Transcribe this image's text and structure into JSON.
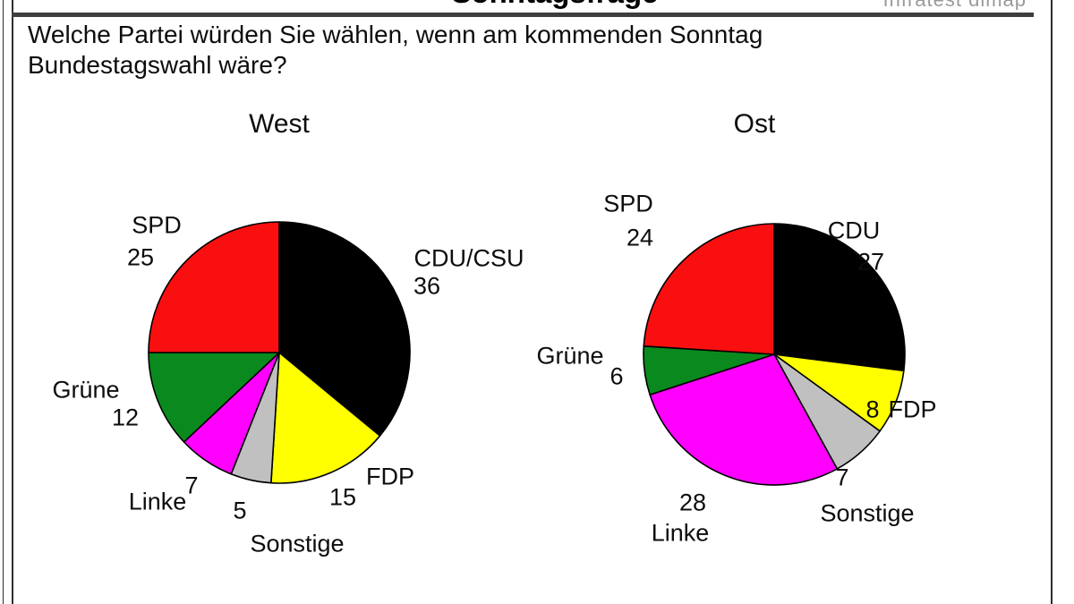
{
  "page": {
    "clipped_header_title": "Sonntagsfrage",
    "source_logo": "Infratest dimap",
    "question": {
      "line1": "Welche Partei würden Sie wählen, wenn am kommenden Sonntag",
      "line2": "Bundestagswahl wäre?"
    }
  },
  "chart_data": [
    {
      "type": "pie",
      "title": "West",
      "unit": "percent",
      "start_angle": "12-oclock",
      "direction": "clockwise",
      "categories": [
        "CDU/CSU",
        "FDP",
        "Sonstige",
        "Linke",
        "Grüne",
        "SPD"
      ],
      "values": [
        36,
        15,
        5,
        7,
        12,
        25
      ],
      "colors": [
        "#000000",
        "#ffff00",
        "#c0c0c0",
        "#ff00ff",
        "#0a8a1e",
        "#f90f0f"
      ]
    },
    {
      "type": "pie",
      "title": "Ost",
      "unit": "percent",
      "start_angle": "12-oclock",
      "direction": "clockwise",
      "categories": [
        "CDU",
        "FDP",
        "Sonstige",
        "Linke",
        "Grüne",
        "SPD"
      ],
      "values": [
        27,
        8,
        7,
        28,
        6,
        24
      ],
      "colors": [
        "#000000",
        "#ffff00",
        "#c0c0c0",
        "#ff00ff",
        "#0a8a1e",
        "#f90f0f"
      ]
    }
  ]
}
